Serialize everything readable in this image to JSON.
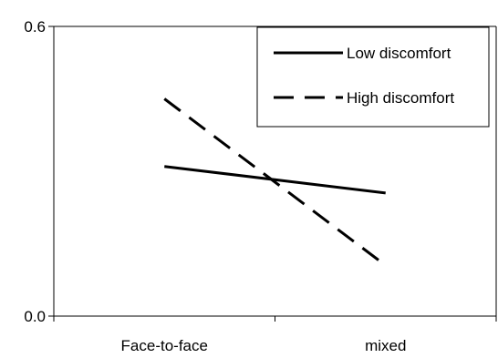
{
  "chart_data": {
    "type": "line",
    "title": "",
    "xlabel": "",
    "ylabel": "",
    "categories": [
      "Face-to-face",
      "mixed"
    ],
    "ylim": [
      0.0,
      0.6
    ],
    "yticks": [
      0.0,
      0.6
    ],
    "ytick_labels": [
      "0.0",
      "0.6"
    ],
    "grid": false,
    "legend_position": "top-right",
    "series": [
      {
        "name": "Low discomfort",
        "style": "solid",
        "color": "#000000",
        "values": [
          0.31,
          0.255
        ]
      },
      {
        "name": "High discomfort",
        "style": "dashed",
        "color": "#000000",
        "values": [
          0.45,
          0.105
        ]
      }
    ]
  }
}
